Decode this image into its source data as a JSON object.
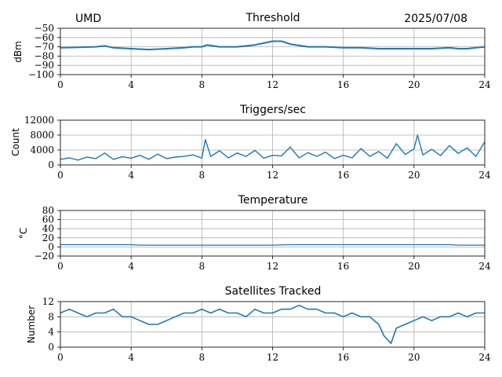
{
  "header": {
    "left": "UMD",
    "right": "2025/07/08"
  },
  "colors": {
    "series": "#1f77b4",
    "grid": "#b0b0b0"
  },
  "chart_data": [
    {
      "type": "line",
      "title": "Threshold",
      "ylabel": "dBm",
      "xlim": [
        0,
        24
      ],
      "ylim": [
        -100,
        -50
      ],
      "xticks": [
        0,
        4,
        8,
        12,
        16,
        20,
        24
      ],
      "yticks": [
        -100,
        -90,
        -80,
        -70,
        -60,
        -50
      ],
      "grid": true,
      "x": [
        0,
        1,
        2,
        2.5,
        3,
        4,
        5,
        6,
        7,
        7.5,
        8,
        8.3,
        9,
        10,
        11,
        11.5,
        12,
        12.5,
        13,
        14,
        15,
        16,
        17,
        18,
        19,
        20,
        21,
        22,
        22.5,
        23,
        23.5,
        24
      ],
      "values": [
        -71,
        -70.5,
        -70,
        -69,
        -71,
        -72,
        -73,
        -72,
        -71,
        -70,
        -70,
        -68,
        -70,
        -70,
        -68,
        -66,
        -64,
        -64,
        -67,
        -70,
        -70,
        -71,
        -71,
        -72,
        -72,
        -72,
        -72,
        -71,
        -72,
        -72,
        -71,
        -70
      ]
    },
    {
      "type": "line",
      "title": "Triggers/sec",
      "ylabel": "Count",
      "xlim": [
        0,
        24
      ],
      "ylim": [
        0,
        12000
      ],
      "xticks": [
        0,
        4,
        8,
        12,
        16,
        20,
        24
      ],
      "yticks": [
        0,
        4000,
        8000,
        12000
      ],
      "grid": true,
      "x": [
        0,
        0.5,
        1,
        1.5,
        2,
        2.5,
        3,
        3.5,
        4,
        4.5,
        5,
        5.5,
        6,
        6.5,
        7,
        7.5,
        8,
        8.2,
        8.5,
        9,
        9.5,
        10,
        10.5,
        11,
        11.5,
        12,
        12.5,
        13,
        13.5,
        14,
        14.5,
        15,
        15.5,
        16,
        16.5,
        17,
        17.5,
        18,
        18.5,
        19,
        19.5,
        20,
        20.2,
        20.5,
        21,
        21.5,
        22,
        22.5,
        23,
        23.5,
        24
      ],
      "values": [
        1500,
        1900,
        1300,
        2100,
        1700,
        3200,
        1500,
        2200,
        1800,
        2600,
        1500,
        2900,
        1700,
        2100,
        2300,
        2700,
        1800,
        6800,
        2300,
        3800,
        1900,
        3200,
        2300,
        3900,
        1800,
        2600,
        2400,
        4800,
        1900,
        3300,
        2300,
        3400,
        1700,
        2600,
        1900,
        4400,
        2300,
        3600,
        1800,
        5700,
        2800,
        4300,
        8000,
        2700,
        4200,
        2500,
        5200,
        3100,
        4600,
        2300,
        6200
      ]
    },
    {
      "type": "line",
      "title": "Temperature",
      "ylabel": "°C",
      "xlim": [
        0,
        24
      ],
      "ylim": [
        -20,
        80
      ],
      "xticks": [
        0,
        4,
        8,
        12,
        16,
        20,
        24
      ],
      "yticks": [
        -20,
        0,
        20,
        40,
        60,
        80
      ],
      "grid": true,
      "x": [
        0,
        2,
        4,
        4.5,
        6,
        8,
        10,
        12,
        13,
        16,
        20,
        22,
        22.5,
        24
      ],
      "values": [
        5,
        5,
        5,
        4,
        4,
        4,
        4,
        4,
        5,
        5,
        5,
        5,
        4,
        4
      ]
    },
    {
      "type": "line",
      "title": "Satellites Tracked",
      "ylabel": "Number",
      "xlim": [
        0,
        24
      ],
      "ylim": [
        0,
        12
      ],
      "xticks": [
        0,
        4,
        8,
        12,
        16,
        20,
        24
      ],
      "yticks": [
        0,
        4,
        8,
        12
      ],
      "grid": true,
      "x": [
        0,
        0.5,
        1,
        1.5,
        2,
        2.5,
        3,
        3.5,
        4,
        4.5,
        5,
        5.5,
        6,
        6.5,
        7,
        7.5,
        8,
        8.5,
        9,
        9.5,
        10,
        10.5,
        11,
        11.5,
        12,
        12.5,
        13,
        13.5,
        14,
        14.5,
        15,
        15.5,
        16,
        16.5,
        17,
        17.5,
        18,
        18.3,
        18.7,
        19,
        19.5,
        20,
        20.5,
        21,
        21.5,
        22,
        22.5,
        23,
        23.5,
        24
      ],
      "values": [
        9,
        10,
        9,
        8,
        9,
        9,
        10,
        8,
        8,
        7,
        6,
        6,
        7,
        8,
        9,
        9,
        10,
        9,
        10,
        9,
        9,
        8,
        10,
        9,
        9,
        10,
        10,
        11,
        10,
        10,
        9,
        9,
        8,
        9,
        8,
        8,
        6,
        3,
        1,
        5,
        6,
        7,
        8,
        7,
        8,
        8,
        9,
        8,
        9,
        9
      ]
    }
  ]
}
